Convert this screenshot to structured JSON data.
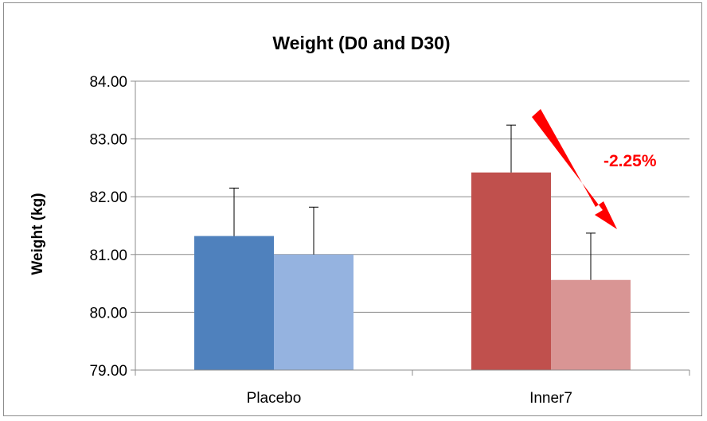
{
  "chart_data": {
    "type": "bar",
    "title": "Weight (D0 and D30)",
    "ylabel": "Weight (kg)",
    "xlabel": "",
    "categories": [
      "Placebo",
      "Inner7"
    ],
    "ylim": [
      79,
      84
    ],
    "yticks": [
      "79.00",
      "80.00",
      "81.00",
      "82.00",
      "83.00",
      "84.00"
    ],
    "grid": true,
    "bars": [
      {
        "category": "Placebo",
        "value": 81.32,
        "error": 0.83,
        "color": "#4f81bd"
      },
      {
        "category": "Placebo",
        "value": 81.0,
        "error": 0.82,
        "color": "#95b3e0"
      },
      {
        "category": "Inner7",
        "value": 82.42,
        "error": 0.82,
        "color": "#c0504d"
      },
      {
        "category": "Inner7",
        "value": 80.56,
        "error": 0.81,
        "color": "#d99594"
      }
    ],
    "annotation": {
      "text": "-2.25%",
      "color": "#ff0000"
    }
  }
}
